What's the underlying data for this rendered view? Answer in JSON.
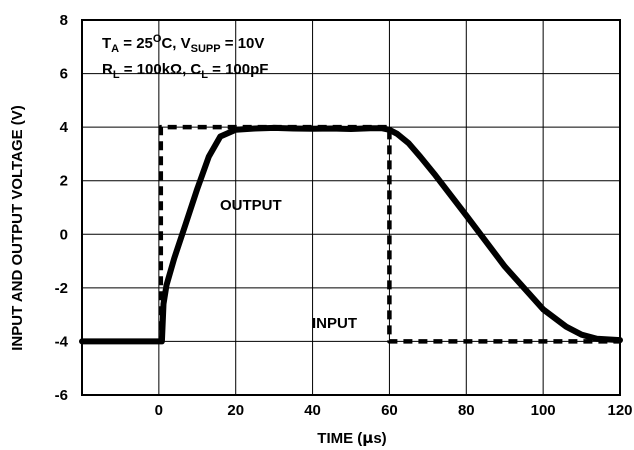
{
  "chart_data": {
    "type": "line",
    "title": "",
    "xlabel_parts": [
      "TIME (",
      "µ",
      "s)"
    ],
    "ylabel": "INPUT AND OUTPUT VOLTAGE (V)",
    "xlim": [
      -20,
      120
    ],
    "ylim": [
      -6,
      8
    ],
    "x_ticks": [
      0,
      20,
      40,
      60,
      80,
      100,
      120
    ],
    "y_ticks": [
      -6,
      -4,
      -2,
      0,
      2,
      4,
      6,
      8
    ],
    "grid": true,
    "conditions": {
      "line1": {
        "t": "T",
        "t_sub": "A",
        "eq": " = 25",
        "sup": "O",
        "c": "C, V",
        "v_sub": "SUPP",
        "rest": " = 10V"
      },
      "line2": {
        "r": "R",
        "r_sub": "L",
        "r_val": " = 100kΩ, C",
        "c_sub": "L",
        "c_val": " = 100pF"
      }
    },
    "series": [
      {
        "name": "INPUT",
        "style": "dashed",
        "x": [
          -20,
          0.5,
          0.5,
          60,
          60,
          120
        ],
        "y": [
          -4,
          -4,
          4,
          4,
          -4,
          -4
        ]
      },
      {
        "name": "OUTPUT",
        "style": "solid",
        "x": [
          -20,
          0.8,
          1.2,
          2,
          4,
          7,
          10,
          13,
          16,
          20,
          25,
          30,
          35,
          40,
          45,
          50,
          55,
          58,
          60,
          62,
          65,
          68,
          72,
          80,
          90,
          100,
          106,
          110,
          114,
          120
        ],
        "y": [
          -4,
          -4,
          -2.6,
          -1.9,
          -0.9,
          0.4,
          1.7,
          2.9,
          3.65,
          3.9,
          3.95,
          3.97,
          3.95,
          3.94,
          3.95,
          3.93,
          3.96,
          3.96,
          3.9,
          3.75,
          3.4,
          2.9,
          2.2,
          0.7,
          -1.2,
          -2.8,
          -3.45,
          -3.75,
          -3.9,
          -3.95
        ]
      }
    ]
  }
}
